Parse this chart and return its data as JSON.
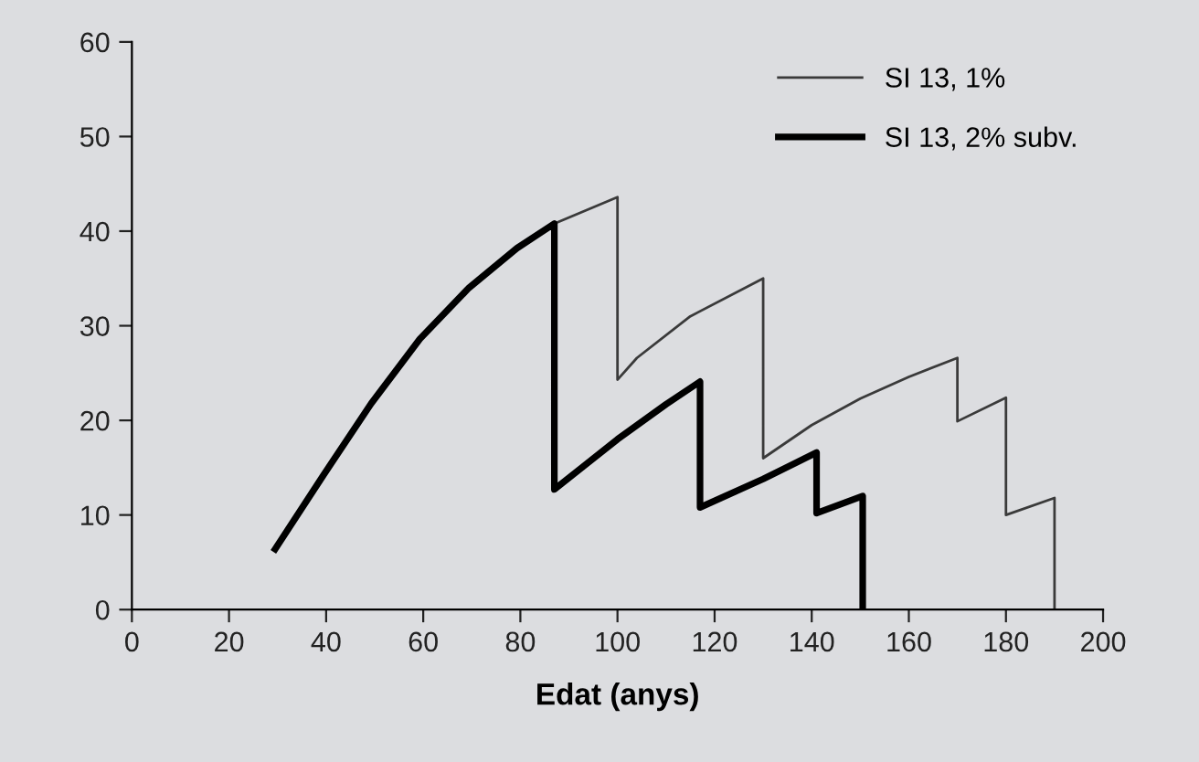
{
  "chart_data": {
    "type": "line",
    "xlabel": "Edat (anys)",
    "xlim": [
      0,
      200
    ],
    "xticks": [
      0,
      20,
      40,
      60,
      80,
      100,
      120,
      140,
      160,
      180,
      200
    ],
    "ylim": [
      0,
      60
    ],
    "yticks": [
      0,
      10,
      20,
      30,
      40,
      50,
      60
    ],
    "grid": false,
    "legend": "top right",
    "marker": "none",
    "line_style": "solid",
    "series": [
      {
        "name": "SI 13, 1%",
        "color": "#3a3a3a",
        "x": [
          29.5,
          39.3,
          49.3,
          59.3,
          69.4,
          79.3,
          87,
          100,
          100,
          104,
          115,
          130,
          130,
          140,
          150,
          160,
          170,
          170,
          180,
          180,
          190,
          190
        ],
        "values": [
          6.4,
          14.1,
          21.8,
          28.6,
          34,
          38.2,
          40.8,
          43.6,
          24.3,
          26.6,
          31,
          35,
          16,
          19.5,
          22.3,
          24.6,
          26.6,
          19.9,
          22.4,
          10,
          11.8,
          0
        ]
      },
      {
        "name": "SI 13, 2% subv.",
        "color": "#000000",
        "x": [
          29.5,
          39.3,
          49.3,
          59.3,
          69.4,
          79.3,
          87,
          87,
          100,
          110,
          117,
          117,
          130,
          141,
          141,
          150.5,
          150.5
        ],
        "values": [
          6.4,
          14.1,
          21.8,
          28.6,
          34,
          38.2,
          40.8,
          12.7,
          18,
          21.7,
          24.1,
          10.8,
          13.8,
          16.6,
          10.2,
          12,
          0
        ]
      }
    ]
  }
}
